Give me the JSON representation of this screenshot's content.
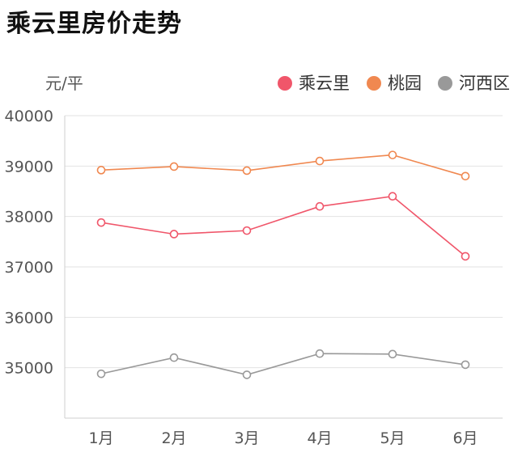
{
  "chart_data": {
    "type": "line",
    "title": "乘云里房价走势",
    "ylabel": "元/平",
    "xlabel": "",
    "categories": [
      "1月",
      "2月",
      "3月",
      "4月",
      "5月",
      "6月"
    ],
    "y_ticks": [
      35000,
      36000,
      37000,
      38000,
      39000,
      40000
    ],
    "ylim": [
      34000,
      40000
    ],
    "grid": true,
    "legend_position": "top-right",
    "series": [
      {
        "name": "乘云里",
        "color": "#f0566a",
        "values": [
          37880,
          37650,
          37720,
          38200,
          38400,
          37210
        ]
      },
      {
        "name": "桃园",
        "color": "#f08850",
        "values": [
          38920,
          38990,
          38910,
          39100,
          39220,
          38800
        ]
      },
      {
        "name": "河西区",
        "color": "#999999",
        "values": [
          34880,
          35200,
          34860,
          35280,
          35270,
          35060
        ]
      }
    ]
  }
}
